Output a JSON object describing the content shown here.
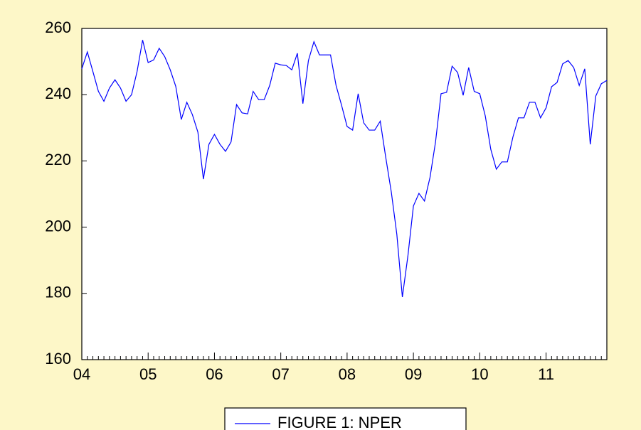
{
  "chart_data": {
    "type": "line",
    "categories": [
      "04",
      null,
      null,
      null,
      null,
      null,
      null,
      null,
      null,
      null,
      null,
      null,
      "05",
      null,
      null,
      null,
      null,
      null,
      null,
      null,
      null,
      null,
      null,
      null,
      "06",
      null,
      null,
      null,
      null,
      null,
      null,
      null,
      null,
      null,
      null,
      null,
      "07",
      null,
      null,
      null,
      null,
      null,
      null,
      null,
      null,
      null,
      null,
      null,
      "08",
      null,
      null,
      null,
      null,
      null,
      null,
      null,
      null,
      null,
      null,
      null,
      "09",
      null,
      null,
      null,
      null,
      null,
      null,
      null,
      null,
      null,
      null,
      null,
      "10",
      null,
      null,
      null,
      null,
      null,
      null,
      null,
      null,
      null,
      null,
      null,
      "11",
      null,
      null,
      null,
      null,
      null,
      null,
      null,
      null,
      null,
      null,
      null
    ],
    "series": [
      {
        "name": "FIGURE 1:  NPER",
        "color": "#0000ff",
        "values": [
          247.8,
          252.9,
          247.0,
          241.0,
          238.0,
          242.0,
          244.5,
          242.0,
          238.0,
          240.0,
          247.0,
          256.5,
          249.7,
          250.5,
          254.0,
          251.5,
          247.5,
          242.5,
          232.5,
          237.7,
          234.0,
          228.7,
          214.5,
          225.0,
          228.0,
          225.0,
          222.9,
          225.7,
          237.0,
          234.5,
          234.2,
          241.0,
          238.5,
          238.5,
          242.8,
          249.5,
          249.0,
          248.8,
          247.5,
          252.5,
          237.3,
          250.3,
          256.0,
          252.0,
          252.0,
          252.0,
          242.8,
          236.8,
          230.4,
          229.3,
          240.3,
          231.5,
          229.3,
          229.3,
          232.0,
          221.0,
          210.6,
          197.8,
          178.9,
          191.3,
          206.4,
          210.2,
          207.9,
          215.0,
          225.7,
          240.3,
          240.7,
          248.6,
          246.7,
          239.8,
          248.2,
          241.0,
          240.3,
          233.6,
          223.5,
          217.5,
          219.7,
          219.7,
          227.2,
          233.0,
          233.0,
          237.7,
          237.7,
          233.0,
          236.0,
          242.4,
          243.7,
          249.3,
          250.3,
          248.2,
          242.8,
          247.8,
          225.0,
          239.6,
          243.3,
          244.3
        ]
      }
    ],
    "ylim": [
      160,
      260
    ],
    "yticks": [
      160,
      180,
      200,
      220,
      240,
      260
    ],
    "grid": false
  }
}
